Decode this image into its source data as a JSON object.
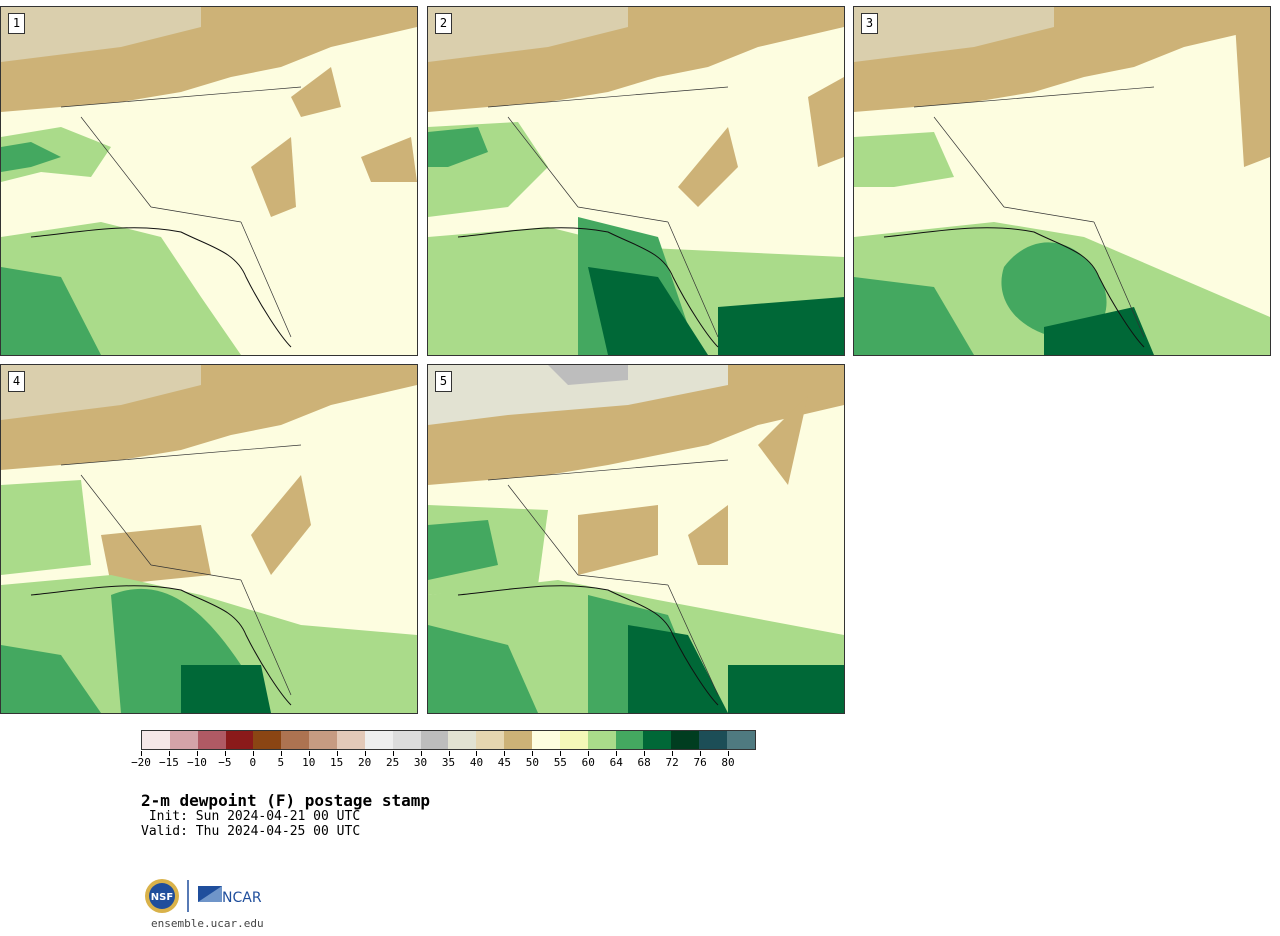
{
  "panels": [
    {
      "label": "1"
    },
    {
      "label": "2"
    },
    {
      "label": "3"
    },
    {
      "label": "4"
    },
    {
      "label": "5"
    }
  ],
  "colorbar": {
    "colors": [
      "#f5e7e7",
      "#d4a3a8",
      "#b05a64",
      "#8b1a1a",
      "#8b4513",
      "#ad7351",
      "#c79b82",
      "#e3c9b8",
      "#eeeeee",
      "#dcdcdc",
      "#bdbdbd",
      "#e2e2d2",
      "#e6d6b0",
      "#cdb277",
      "#fdfde0",
      "#f4f8b8",
      "#aadb8a",
      "#44a860",
      "#006837",
      "#003d20",
      "#1c4e57",
      "#4f7a80"
    ],
    "tick_labels": [
      "−20",
      "−15",
      "−10",
      "−5",
      "0",
      "5",
      "10",
      "15",
      "20",
      "25",
      "30",
      "35",
      "40",
      "45",
      "50",
      "55",
      "60",
      "64",
      "68",
      "72",
      "76",
      "80"
    ]
  },
  "title": "2-m dewpoint (F) postage stamp",
  "init": " Init: Sun 2024-04-21 00 UTC",
  "valid": "Valid: Thu 2024-04-25 00 UTC",
  "logos": {
    "nsf": "NSF",
    "ncar": "NCAR"
  },
  "site": "ensemble.ucar.edu"
}
